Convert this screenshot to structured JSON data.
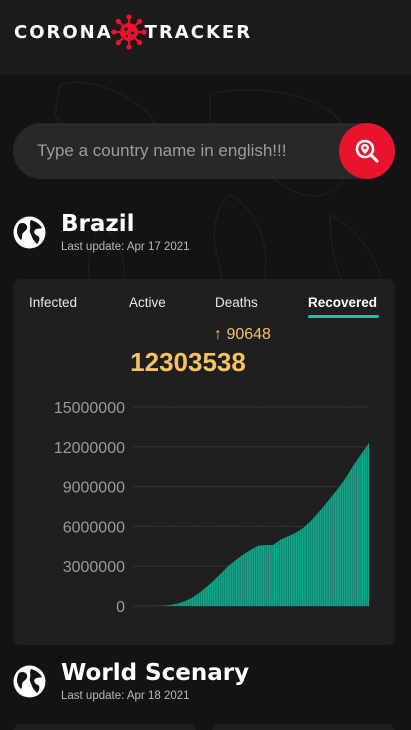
{
  "header": {
    "logo_left": "CORONA",
    "logo_right": "TRACKER",
    "logo_icon": "virus-icon"
  },
  "search": {
    "placeholder": "Type a country name in english!!!",
    "button_icon": "search-location-icon"
  },
  "country": {
    "name": "Brazil",
    "last_update": "Last update: Apr 17 2021",
    "icon": "globe-icon"
  },
  "stats_card": {
    "tabs": [
      {
        "label": "Infected",
        "active": false
      },
      {
        "label": "Active",
        "active": false
      },
      {
        "label": "Deaths",
        "active": false
      },
      {
        "label": "Recovered",
        "active": true
      }
    ],
    "delta_arrow": "↑",
    "delta_value": "90648",
    "total": "12303538",
    "colors": {
      "accent": "#19c4a0",
      "total": "#f7c265",
      "delta": "#f5c065"
    }
  },
  "chart_data": {
    "type": "area",
    "title": "",
    "xlabel": "",
    "ylabel": "",
    "ylim": [
      0,
      15000000
    ],
    "yticks": [
      "15000000",
      "12000000",
      "9000000",
      "6000000",
      "3000000",
      "0"
    ],
    "grid": true,
    "series": [
      {
        "color": "#12a587",
        "values": [
          0,
          0,
          0,
          5000,
          20000,
          80000,
          180000,
          360000,
          620000,
          1000000,
          1450000,
          1950000,
          2500000,
          3050000,
          3500000,
          3900000,
          4250000,
          4550000,
          4600000,
          4600000,
          5000000,
          5250000,
          5500000,
          5850000,
          6350000,
          6950000,
          7600000,
          8300000,
          9000000,
          9800000,
          10700000,
          11500000,
          12303538
        ]
      }
    ]
  },
  "world": {
    "name": "World Scenary",
    "last_update": "Last update: Apr 18 2021",
    "icon": "globe-icon"
  }
}
